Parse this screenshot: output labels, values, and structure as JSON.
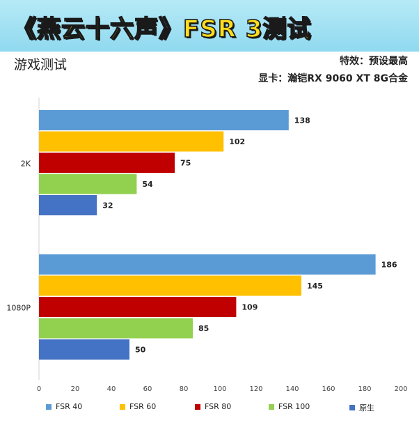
{
  "header": {
    "title": "《燕云十六声》FSR 3测试",
    "subtitle": "游戏测试",
    "effects": "特效：预设最高",
    "gpu": "显卡：瀚铠RX 9060 XT 8G合金"
  },
  "chart_data": {
    "type": "bar",
    "orientation": "horizontal",
    "categories": [
      "2K",
      "1080P"
    ],
    "series": [
      {
        "name": "FSR 40",
        "color": "#5b9bd5",
        "values": [
          138,
          186
        ]
      },
      {
        "name": "FSR 60",
        "color": "#ffc000",
        "values": [
          102,
          145
        ]
      },
      {
        "name": "FSR 80",
        "color": "#c00000",
        "values": [
          75,
          109
        ]
      },
      {
        "name": "FSR 100",
        "color": "#92d050",
        "values": [
          54,
          85
        ]
      },
      {
        "name": "原生",
        "color": "#4472c4",
        "values": [
          32,
          50
        ]
      }
    ],
    "xlim": [
      0,
      200
    ],
    "xticks": [
      0,
      20,
      40,
      60,
      80,
      100,
      120,
      140,
      160,
      180,
      200
    ],
    "grid": false,
    "legend": "bottom"
  }
}
